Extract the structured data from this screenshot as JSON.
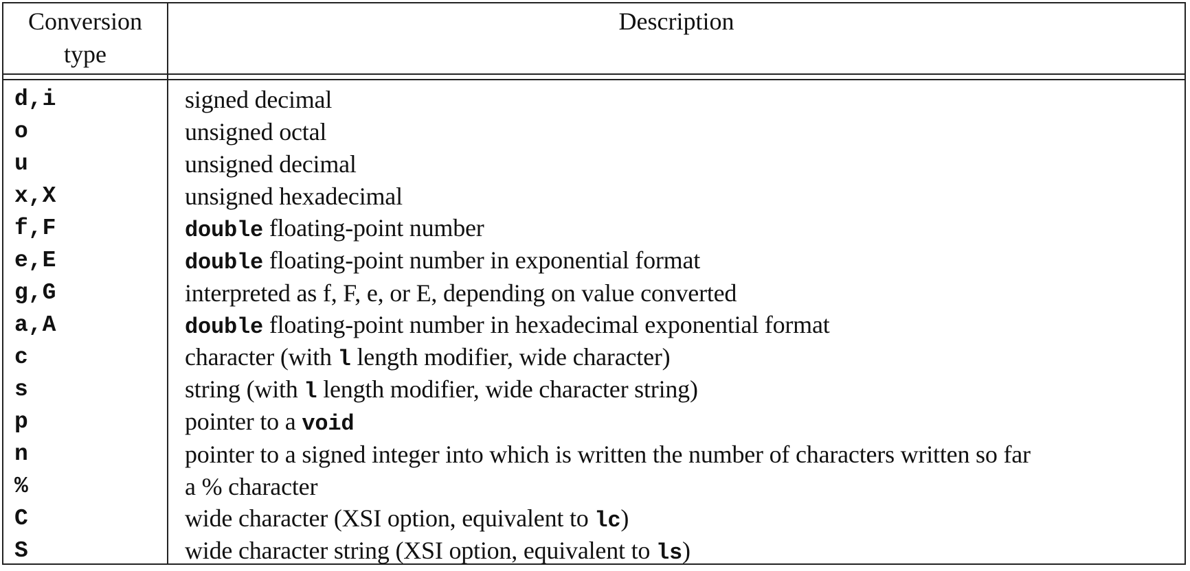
{
  "headers": {
    "conversion_line1": "Conversion",
    "conversion_line2": "type",
    "description": "Description"
  },
  "rows": [
    {
      "type": "d,i",
      "desc": [
        {
          "t": "signed decimal"
        }
      ]
    },
    {
      "type": "o",
      "desc": [
        {
          "t": "unsigned octal"
        }
      ]
    },
    {
      "type": "u",
      "desc": [
        {
          "t": "unsigned decimal"
        }
      ]
    },
    {
      "type": "x,X",
      "desc": [
        {
          "t": "unsigned hexadecimal"
        }
      ]
    },
    {
      "type": "f,F",
      "desc": [
        {
          "t": "double",
          "code": true
        },
        {
          "t": " floating-point number"
        }
      ]
    },
    {
      "type": "e,E",
      "desc": [
        {
          "t": "double",
          "code": true
        },
        {
          "t": " floating-point number in exponential format"
        }
      ]
    },
    {
      "type": "g,G",
      "desc": [
        {
          "t": "interpreted as f, F, e, or E, depending on value converted"
        }
      ]
    },
    {
      "type": "a,A",
      "desc": [
        {
          "t": "double",
          "code": true
        },
        {
          "t": " floating-point number in hexadecimal exponential format"
        }
      ]
    },
    {
      "type": "c",
      "desc": [
        {
          "t": "character (with "
        },
        {
          "t": "l",
          "code": true
        },
        {
          "t": " length modifier, wide character)"
        }
      ]
    },
    {
      "type": "s",
      "desc": [
        {
          "t": "string (with "
        },
        {
          "t": "l",
          "code": true
        },
        {
          "t": " length modifier, wide character string)"
        }
      ]
    },
    {
      "type": "p",
      "desc": [
        {
          "t": "pointer to a "
        },
        {
          "t": "void",
          "code": true
        }
      ]
    },
    {
      "type": "n",
      "desc": [
        {
          "t": "pointer to a signed integer into which is written the number of characters written so far"
        }
      ]
    },
    {
      "type": "%",
      "desc": [
        {
          "t": "a % character"
        }
      ]
    },
    {
      "type": "C",
      "desc": [
        {
          "t": "wide character (XSI option, equivalent to "
        },
        {
          "t": "lc",
          "code": true
        },
        {
          "t": ")"
        }
      ]
    },
    {
      "type": "S",
      "desc": [
        {
          "t": "wide character string (XSI option, equivalent to "
        },
        {
          "t": "ls",
          "code": true
        },
        {
          "t": ")"
        }
      ]
    }
  ]
}
